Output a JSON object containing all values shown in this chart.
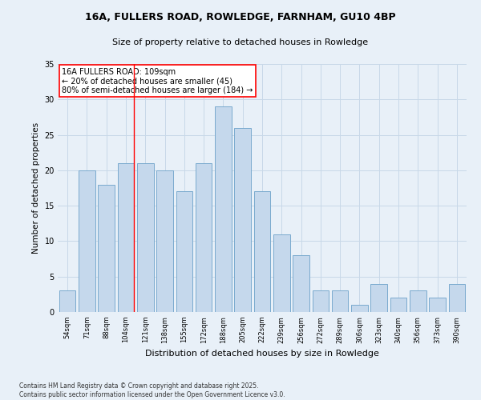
{
  "title1": "16A, FULLERS ROAD, ROWLEDGE, FARNHAM, GU10 4BP",
  "title2": "Size of property relative to detached houses in Rowledge",
  "xlabel": "Distribution of detached houses by size in Rowledge",
  "ylabel": "Number of detached properties",
  "categories": [
    "54sqm",
    "71sqm",
    "88sqm",
    "104sqm",
    "121sqm",
    "138sqm",
    "155sqm",
    "172sqm",
    "188sqm",
    "205sqm",
    "222sqm",
    "239sqm",
    "256sqm",
    "272sqm",
    "289sqm",
    "306sqm",
    "323sqm",
    "340sqm",
    "356sqm",
    "373sqm",
    "390sqm"
  ],
  "values": [
    3,
    20,
    18,
    21,
    21,
    20,
    17,
    21,
    29,
    26,
    17,
    11,
    8,
    3,
    3,
    1,
    4,
    2,
    3,
    2,
    4
  ],
  "bar_color": "#c5d8ec",
  "bar_edge_color": "#7aaace",
  "grid_color": "#c8d8e8",
  "background_color": "#e8f0f8",
  "red_line_index": 3,
  "annotation_lines": [
    "16A FULLERS ROAD: 109sqm",
    "← 20% of detached houses are smaller (45)",
    "80% of semi-detached houses are larger (184) →"
  ],
  "footer1": "Contains HM Land Registry data © Crown copyright and database right 2025.",
  "footer2": "Contains public sector information licensed under the Open Government Licence v3.0.",
  "ylim": [
    0,
    35
  ],
  "yticks": [
    0,
    5,
    10,
    15,
    20,
    25,
    30,
    35
  ]
}
